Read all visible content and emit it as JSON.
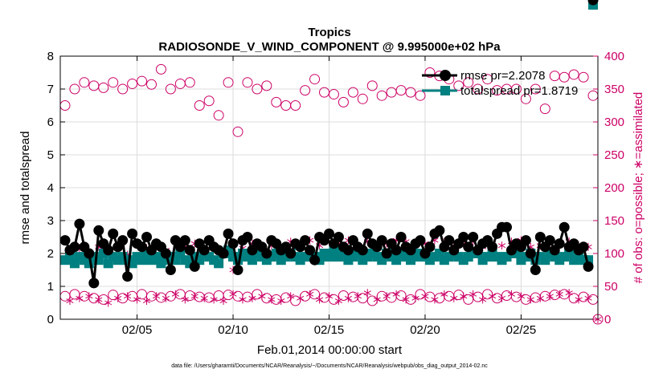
{
  "chart_data": {
    "type": "line",
    "title": "Tropics",
    "subtitle": "RADIOSONDE_V_WIND_COMPONENT @ 9.995000e+02 hPa",
    "xlabel": "Feb.01,2014 00:00:00 start",
    "ylabel_left": "rmse and totalspread",
    "ylabel_right": "# of obs: o=possible; ∗=assimilated",
    "footnote": "data file: /Users/gharamti/Documents/NCAR/Reanalysis/~/Documents/NCAR/Reanalysis/webpub/obs_diag_output_2014-02.nc",
    "xlim": [
      1,
      29
    ],
    "ylim_left": [
      0,
      8
    ],
    "ylim_right": [
      0,
      400
    ],
    "x_ticks": [
      5,
      10,
      15,
      20,
      25
    ],
    "x_tick_labels": [
      "02/05",
      "02/10",
      "02/15",
      "02/20",
      "02/25"
    ],
    "y_ticks_left": [
      0,
      1,
      2,
      3,
      4,
      5,
      6,
      7,
      8
    ],
    "y_ticks_right": [
      0,
      50,
      100,
      150,
      200,
      250,
      300,
      350,
      400
    ],
    "legend": [
      "rmse pr=2.2078",
      "totalspread pr=1.8719"
    ],
    "colors": {
      "rmse": "#000000",
      "spread": "#008080",
      "obs": "#cc0066",
      "grid": "#dcdcdc"
    },
    "x": [
      1.25,
      1.5,
      1.75,
      2.0,
      2.25,
      2.5,
      2.75,
      3.0,
      3.25,
      3.5,
      3.75,
      4.0,
      4.25,
      4.5,
      4.75,
      5.0,
      5.25,
      5.5,
      5.75,
      6.0,
      6.25,
      6.5,
      6.75,
      7.0,
      7.25,
      7.5,
      7.75,
      8.0,
      8.25,
      8.5,
      8.75,
      9.0,
      9.25,
      9.5,
      9.75,
      10.0,
      10.25,
      10.5,
      10.75,
      11.0,
      11.25,
      11.5,
      11.75,
      12.0,
      12.25,
      12.5,
      12.75,
      13.0,
      13.25,
      13.5,
      13.75,
      14.0,
      14.25,
      14.5,
      14.75,
      15.0,
      15.25,
      15.5,
      15.75,
      16.0,
      16.25,
      16.5,
      16.75,
      17.0,
      17.25,
      17.5,
      17.75,
      18.0,
      18.25,
      18.5,
      18.75,
      19.0,
      19.25,
      19.5,
      19.75,
      20.0,
      20.25,
      20.5,
      20.75,
      21.0,
      21.25,
      21.5,
      21.75,
      22.0,
      22.25,
      22.5,
      22.75,
      23.0,
      23.25,
      23.5,
      23.75,
      24.0,
      24.25,
      24.5,
      24.75,
      25.0,
      25.25,
      25.5,
      25.75,
      26.0,
      26.25,
      26.5,
      26.75,
      27.0,
      27.25,
      27.5,
      27.75,
      28.0,
      28.25,
      28.5,
      28.75
    ],
    "rmse": [
      2.4,
      2.1,
      2.2,
      2.9,
      2.2,
      2.0,
      1.1,
      2.7,
      2.3,
      2.1,
      2.6,
      2.2,
      2.4,
      1.3,
      2.6,
      2.3,
      2.2,
      2.5,
      2.1,
      2.3,
      2.2,
      2.0,
      1.5,
      2.4,
      2.2,
      2.4,
      2.1,
      1.6,
      2.3,
      2.1,
      2.4,
      2.2,
      2.1,
      2.0,
      2.6,
      2.3,
      1.5,
      2.4,
      2.5,
      2.1,
      2.3,
      2.2,
      2.0,
      2.4,
      2.3,
      2.1,
      2.2,
      2.0,
      2.3,
      2.2,
      2.4,
      2.1,
      1.8,
      2.5,
      2.4,
      2.6,
      2.3,
      2.5,
      2.2,
      2.1,
      2.4,
      2.2,
      2.1,
      2.6,
      2.3,
      2.2,
      2.4,
      2.0,
      2.3,
      2.1,
      2.5,
      2.2,
      2.1,
      2.3,
      2.4,
      2.0,
      2.2,
      2.6,
      2.7,
      2.2,
      2.4,
      2.1,
      2.3,
      2.5,
      2.2,
      2.5,
      2.1,
      2.3,
      2.4,
      2.2,
      2.6,
      2.8,
      2.8,
      2.1,
      2.3,
      2.2,
      2.4,
      2.0,
      1.5,
      2.5,
      2.2,
      2.4,
      2.1,
      2.3,
      2.8,
      2.2,
      2.3,
      2.1,
      2.2,
      1.6
    ],
    "spread": [
      1.8,
      1.9,
      1.7,
      1.9,
      1.8,
      1.7,
      1.9,
      1.8,
      2.0,
      1.7,
      1.9,
      1.8,
      1.9,
      1.8,
      1.7,
      1.9,
      1.8,
      2.0,
      1.8,
      1.9,
      1.7,
      1.8,
      1.9,
      1.8,
      2.0,
      1.8,
      1.7,
      1.9,
      1.8,
      2.0,
      1.9,
      1.8,
      1.7,
      2.0,
      2.1,
      1.9,
      1.8,
      2.0,
      1.9,
      1.8,
      2.0,
      1.9,
      1.8,
      1.9,
      2.0,
      1.8,
      1.9,
      2.0,
      1.9,
      1.8,
      1.9,
      2.0,
      1.9,
      1.8,
      2.0,
      1.9,
      2.1,
      1.9,
      2.0,
      1.8,
      1.9,
      2.0,
      1.8,
      1.9,
      2.0,
      1.9,
      1.8,
      2.0,
      1.9,
      1.8,
      2.0,
      1.9,
      1.8,
      2.0,
      1.9,
      2.0,
      1.8,
      1.9,
      2.0,
      1.8,
      1.9,
      2.0,
      1.9,
      1.8,
      1.9,
      2.0,
      2.0,
      1.8,
      1.9,
      2.0,
      1.9,
      1.8,
      1.9,
      2.0,
      2.0,
      1.8,
      1.9,
      2.0,
      1.8,
      1.9,
      1.8,
      2.0,
      1.9,
      1.8,
      1.9,
      2.0,
      1.8,
      1.9,
      1.8,
      1.8
    ],
    "obs_possible_x": [
      1.25,
      1.75,
      2.25,
      2.75,
      3.25,
      3.75,
      4.25,
      4.75,
      5.25,
      5.75,
      6.25,
      6.75,
      7.25,
      7.75,
      8.25,
      8.75,
      9.25,
      9.75,
      10.25,
      10.75,
      11.25,
      11.75,
      12.25,
      12.75,
      13.25,
      13.75,
      14.25,
      14.75,
      15.25,
      15.75,
      16.25,
      16.75,
      17.25,
      17.75,
      18.25,
      18.75,
      19.25,
      19.75,
      20.25,
      20.75,
      21.25,
      21.75,
      22.25,
      22.75,
      23.25,
      23.75,
      24.25,
      24.75,
      25.25,
      25.75,
      26.25,
      26.75,
      27.25,
      27.75,
      28.25,
      28.75
    ],
    "obs_possible_high": [
      325,
      350,
      360,
      355,
      352,
      360,
      350,
      358,
      362,
      357,
      380,
      350,
      358,
      360,
      325,
      332,
      310,
      360,
      285,
      360,
      350,
      355,
      330,
      325,
      325,
      348,
      365,
      345,
      342,
      330,
      345,
      335,
      355,
      340,
      345,
      348,
      345,
      340,
      375,
      370,
      365,
      355,
      360,
      350,
      365,
      348,
      350,
      350,
      335,
      350,
      320,
      370,
      368,
      372,
      368,
      340
    ],
    "obs_possible_low": [
      35,
      38,
      35,
      32,
      30,
      37,
      32,
      35,
      38,
      35,
      33,
      35,
      38,
      36,
      34,
      33,
      36,
      37,
      35,
      34,
      38,
      32,
      30,
      33,
      28,
      35,
      38,
      33,
      30,
      36,
      34,
      32,
      28,
      35,
      33,
      36,
      30,
      38,
      34,
      32,
      35,
      37,
      30,
      34,
      38,
      32,
      36,
      34,
      30,
      33,
      35,
      37,
      38,
      32,
      34,
      30
    ],
    "obs_assim_x": [
      1.5,
      2.0,
      2.5,
      3.0,
      3.5,
      4.0,
      4.5,
      5.0,
      5.5,
      6.0,
      6.5,
      7.0,
      7.5,
      8.0,
      8.5,
      9.0,
      9.5,
      10.0,
      10.5,
      11.0,
      11.5,
      12.0,
      12.5,
      13.0,
      13.5,
      14.0,
      14.5,
      15.0,
      15.5,
      16.0,
      16.5,
      17.0,
      17.5,
      18.0,
      18.5,
      19.0,
      19.5,
      20.0,
      20.5,
      21.0,
      21.5,
      22.0,
      22.5,
      23.0,
      23.5,
      24.0,
      24.5,
      25.0,
      25.5,
      26.0,
      26.5,
      27.0,
      27.5,
      28.0,
      28.5
    ],
    "obs_assim_high": [
      100,
      108,
      100,
      110,
      105,
      112,
      98,
      115,
      108,
      112,
      105,
      118,
      110,
      115,
      108,
      112,
      100,
      75,
      108,
      115,
      110,
      112,
      108,
      118,
      115,
      120,
      112,
      118,
      115,
      120,
      112,
      118,
      110,
      115,
      120,
      118,
      112,
      115,
      120,
      118,
      112,
      115,
      118,
      110,
      115,
      112,
      118,
      120,
      110,
      112,
      108,
      115,
      118,
      112,
      110
    ],
    "obs_assim_low": [
      28,
      32,
      35,
      30,
      25,
      32,
      35,
      30,
      28,
      35,
      32,
      38,
      30,
      35,
      32,
      30,
      28,
      38,
      30,
      32,
      35,
      30,
      28,
      35,
      32,
      38,
      30,
      35,
      28,
      32,
      35,
      40,
      30,
      35,
      38,
      30,
      32,
      35,
      30,
      38,
      32,
      35,
      38,
      30,
      35,
      32,
      38,
      35,
      30,
      32,
      35,
      38,
      40,
      30,
      32
    ],
    "end_marker_right": 0
  }
}
